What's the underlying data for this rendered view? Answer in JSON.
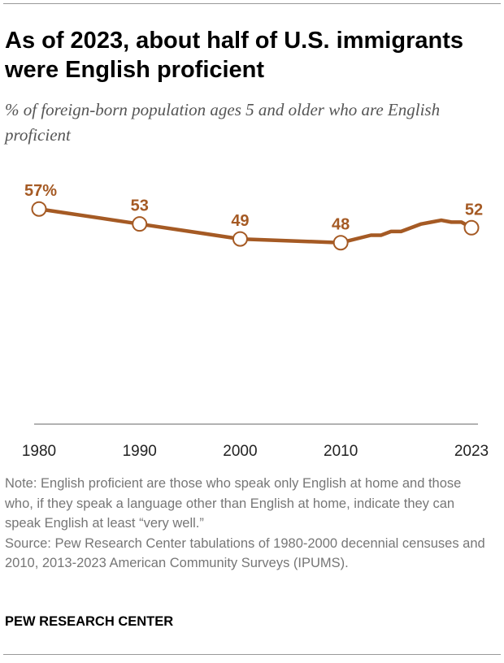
{
  "title": "As of 2023, about half of U.S. immigrants were English proficient",
  "subtitle": "% of foreign-born population ages 5 and older who are English proficient",
  "chart_data": {
    "type": "line",
    "title": "As of 2023, about half of U.S. immigrants were English proficient",
    "ylabel": "",
    "xlabel": "",
    "ylim": [
      0,
      100
    ],
    "grid": false,
    "color": "#A55A24",
    "x_tick_labels": [
      "1980",
      "1990",
      "2000",
      "2010",
      "2023"
    ],
    "series": [
      {
        "x": [
          1980,
          1990,
          2000,
          2010,
          2013,
          2014,
          2015,
          2016,
          2017,
          2018,
          2019,
          2020,
          2021,
          2022,
          2023
        ],
        "values": [
          57,
          53,
          49,
          48,
          50,
          50,
          51,
          51,
          52,
          53,
          53.5,
          54,
          53.5,
          53.5,
          52
        ]
      }
    ],
    "marked_points": [
      {
        "x": 1980,
        "label": "57%"
      },
      {
        "x": 1990,
        "label": "53"
      },
      {
        "x": 2000,
        "label": "49"
      },
      {
        "x": 2010,
        "label": "48"
      },
      {
        "x": 2023,
        "label": "52"
      }
    ]
  },
  "notes": {
    "note": "Note: English proficient are those who speak only English at home and those who, if they speak a language other than English at home, indicate they can speak English at least “very well.”",
    "source": "Source: Pew Research Center tabulations of 1980-2000 decennial censuses and 2010, 2013-2023 American Community Surveys (IPUMS)."
  },
  "brand": "PEW RESEARCH CENTER"
}
